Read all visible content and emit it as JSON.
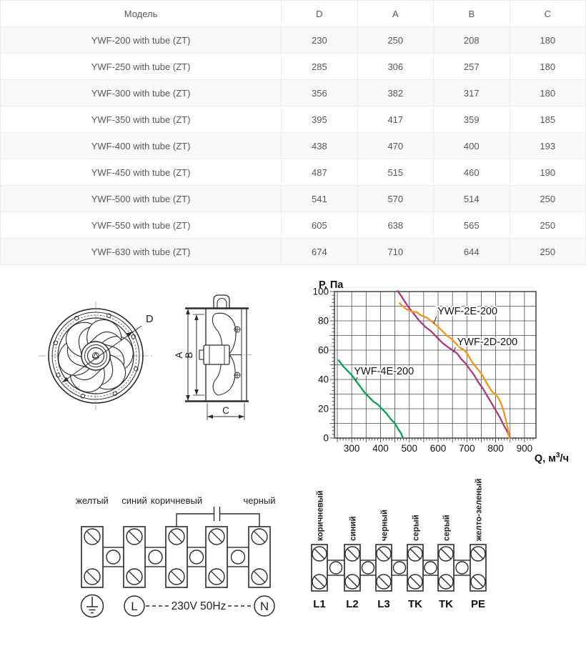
{
  "table": {
    "columns": [
      "Модель",
      "D",
      "A",
      "B",
      "C"
    ],
    "rows": [
      [
        "YWF-200 with tube (ZT)",
        "230",
        "250",
        "208",
        "180"
      ],
      [
        "YWF-250 with tube (ZT)",
        "285",
        "306",
        "257",
        "180"
      ],
      [
        "YWF-300 with tube (ZT)",
        "356",
        "382",
        "317",
        "180"
      ],
      [
        "YWF-350 with tube (ZT)",
        "395",
        "417",
        "359",
        "185"
      ],
      [
        "YWF-400 with tube (ZT)",
        "438",
        "470",
        "400",
        "193"
      ],
      [
        "YWF-450 with tube (ZT)",
        "487",
        "515",
        "460",
        "190"
      ],
      [
        "YWF-500 with tube (ZT)",
        "541",
        "570",
        "514",
        "250"
      ],
      [
        "YWF-550 with tube (ZT)",
        "605",
        "638",
        "565",
        "250"
      ],
      [
        "YWF-630 with tube (ZT)",
        "674",
        "710",
        "644",
        "250"
      ]
    ]
  },
  "drawing": {
    "dim_d": "D",
    "dim_a": "A",
    "dim_b": "B",
    "dim_c": "C"
  },
  "chart_data": {
    "type": "line",
    "ylabel": "P, Па",
    "xlabel_prefix": "Q, м",
    "xlabel_sup": "3",
    "xlabel_suffix": "/ч",
    "xlim": [
      240,
      940
    ],
    "ylim": [
      0,
      100
    ],
    "xticks": [
      300,
      400,
      500,
      600,
      700,
      800,
      900
    ],
    "yticks": [
      0,
      20,
      40,
      60,
      80,
      100
    ],
    "grid": {
      "x_step": 50,
      "y_step": 10,
      "x_start": 250,
      "on": true
    },
    "legend_position": "inline-labels",
    "series": [
      {
        "name": "YWF-4E-200",
        "color": "#00A24F",
        "points": [
          [
            255,
            53
          ],
          [
            270,
            49
          ],
          [
            285,
            46
          ],
          [
            300,
            43
          ],
          [
            315,
            39
          ],
          [
            330,
            35
          ],
          [
            345,
            31
          ],
          [
            360,
            28
          ],
          [
            375,
            25
          ],
          [
            390,
            23
          ],
          [
            405,
            20
          ],
          [
            420,
            17
          ],
          [
            435,
            13
          ],
          [
            450,
            10
          ],
          [
            462,
            6
          ],
          [
            472,
            3
          ],
          [
            478,
            0
          ]
        ]
      },
      {
        "name": "YWF-2D-200",
        "color": "#A8397F",
        "points": [
          [
            458,
            101
          ],
          [
            475,
            96
          ],
          [
            495,
            90
          ],
          [
            515,
            85
          ],
          [
            535,
            80
          ],
          [
            555,
            76
          ],
          [
            575,
            73
          ],
          [
            595,
            69
          ],
          [
            615,
            65
          ],
          [
            635,
            62
          ],
          [
            650,
            60
          ],
          [
            665,
            58
          ],
          [
            680,
            54
          ],
          [
            695,
            51
          ],
          [
            710,
            47
          ],
          [
            725,
            43
          ],
          [
            740,
            38
          ],
          [
            755,
            34
          ],
          [
            770,
            29
          ],
          [
            785,
            24
          ],
          [
            800,
            19
          ],
          [
            815,
            14
          ],
          [
            830,
            8
          ],
          [
            842,
            4
          ],
          [
            850,
            0
          ]
        ]
      },
      {
        "name": "YWF-2E-200",
        "color": "#F4921E",
        "points": [
          [
            466,
            92
          ],
          [
            478,
            90
          ],
          [
            490,
            88
          ],
          [
            502,
            87
          ],
          [
            514,
            86
          ],
          [
            526,
            86
          ],
          [
            538,
            84
          ],
          [
            550,
            83
          ],
          [
            562,
            82
          ],
          [
            575,
            80
          ],
          [
            588,
            78
          ],
          [
            600,
            76
          ],
          [
            615,
            73
          ],
          [
            630,
            70
          ],
          [
            645,
            68
          ],
          [
            660,
            65
          ],
          [
            675,
            62
          ],
          [
            690,
            60
          ],
          [
            700,
            58
          ],
          [
            712,
            54
          ],
          [
            725,
            50
          ],
          [
            738,
            47
          ],
          [
            750,
            44
          ],
          [
            762,
            40
          ],
          [
            774,
            36
          ],
          [
            786,
            32
          ],
          [
            798,
            30
          ],
          [
            808,
            28
          ],
          [
            818,
            24
          ],
          [
            828,
            18
          ],
          [
            836,
            12
          ],
          [
            843,
            6
          ],
          [
            848,
            0
          ]
        ]
      }
    ],
    "annotations": [
      {
        "text": "YWF-2E-200",
        "x": 598,
        "y": 84.5,
        "leader": [
          [
            594,
            83
          ],
          [
            585,
            78
          ]
        ]
      },
      {
        "text": "YWF-2D-200",
        "x": 666,
        "y": 63.5,
        "leader": [
          [
            661,
            62
          ],
          [
            652,
            58.5
          ]
        ]
      },
      {
        "text": "YWF-4E-200",
        "x": 308,
        "y": 43.5,
        "leader": [
          [
            320,
            41.5
          ],
          [
            312,
            39
          ]
        ]
      }
    ]
  },
  "wiring_single": {
    "wire_labels": [
      "желтый",
      "синий",
      "коричневый",
      "черный"
    ],
    "voltage": "230V 50Hz",
    "line_label": "L",
    "neutral_label": "N"
  },
  "wiring_three": {
    "wire_labels": [
      "коричневый",
      "синий",
      "черный",
      "серый",
      "серый",
      "желто-зеленый"
    ],
    "terminal_labels": [
      "L1",
      "L2",
      "L3",
      "TK",
      "TK",
      "PE"
    ]
  }
}
